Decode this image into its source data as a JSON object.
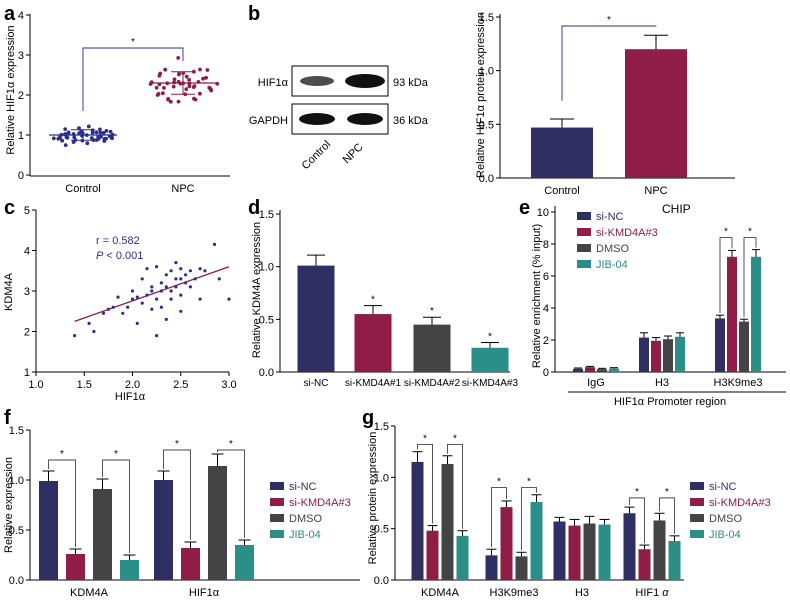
{
  "colors": {
    "navy": "#2f2f63",
    "crimson": "#8f1d45",
    "gray": "#444444",
    "teal": "#2a8f86",
    "dotNavy": "#2b2f8c",
    "dotCrimson": "#8f1d45",
    "fitLine": "#8f1d45",
    "blot": "#111111",
    "annotNavy": "#2b2f8c"
  },
  "chart_data": [
    {
      "id": "a",
      "letter": "a",
      "type": "scatter",
      "ylabel": "Relative HIF1α expression",
      "categories": [
        "Control",
        "NPC"
      ],
      "yticks": [
        "0",
        "1",
        "2",
        "3",
        "4"
      ],
      "ylim": [
        0,
        4
      ],
      "series": [
        {
          "name": "Control",
          "mean": 1.0,
          "sd": 0.13
        },
        {
          "name": "NPC",
          "mean": 2.3,
          "sd": 0.28
        }
      ],
      "sig": "*"
    },
    {
      "id": "b_blot",
      "letter": "b",
      "type": "blot",
      "bands": [
        {
          "name": "HIF1α",
          "kda": "93 kDa"
        },
        {
          "name": "GAPDH",
          "kda": "36 kDa"
        }
      ],
      "lanes": [
        "Control",
        "NPC"
      ]
    },
    {
      "id": "b_bar",
      "type": "bar",
      "ylabel": "Relative HIF1α protein expression",
      "categories": [
        "Control",
        "NPC"
      ],
      "values": [
        0.47,
        1.2
      ],
      "errors": [
        0.08,
        0.13
      ],
      "yticks": [
        "0.0",
        "0.5",
        "1.0",
        "1.5"
      ],
      "ylim": [
        0,
        1.5
      ],
      "sig": "*"
    },
    {
      "id": "c",
      "letter": "c",
      "type": "scatter",
      "xlabel": "HIF1α",
      "ylabel": "KDM4A",
      "xticks": [
        "1.0",
        "1.5",
        "2.0",
        "2.5",
        "3.0"
      ],
      "xlim": [
        1,
        3
      ],
      "yticks": [
        "1",
        "2",
        "3",
        "4",
        "5"
      ],
      "ylim": [
        1,
        5
      ],
      "r_text": "r = 0.582",
      "p_label": "P",
      "p_text": " < 0.001",
      "fit": {
        "x0": 1.4,
        "y0": 2.25,
        "x1": 3.0,
        "y1": 3.6
      },
      "points": [
        [
          1.4,
          1.9
        ],
        [
          1.55,
          2.2
        ],
        [
          1.6,
          2.0
        ],
        [
          1.7,
          2.45
        ],
        [
          1.75,
          2.55
        ],
        [
          1.8,
          2.6
        ],
        [
          1.85,
          2.85
        ],
        [
          1.9,
          2.45
        ],
        [
          1.95,
          2.6
        ],
        [
          2.0,
          3.0
        ],
        [
          2.0,
          2.8
        ],
        [
          2.05,
          2.85
        ],
        [
          2.05,
          2.2
        ],
        [
          2.1,
          3.3
        ],
        [
          2.1,
          2.7
        ],
        [
          2.15,
          2.9
        ],
        [
          2.15,
          3.55
        ],
        [
          2.2,
          3.1
        ],
        [
          2.2,
          2.55
        ],
        [
          2.2,
          3.0
        ],
        [
          2.25,
          3.6
        ],
        [
          2.25,
          2.8
        ],
        [
          2.25,
          1.9
        ],
        [
          2.3,
          3.2
        ],
        [
          2.3,
          3.0
        ],
        [
          2.3,
          2.6
        ],
        [
          2.35,
          3.4
        ],
        [
          2.35,
          3.1
        ],
        [
          2.35,
          2.3
        ],
        [
          2.4,
          3.5
        ],
        [
          2.4,
          3.0
        ],
        [
          2.4,
          2.8
        ],
        [
          2.45,
          3.3
        ],
        [
          2.45,
          3.7
        ],
        [
          2.45,
          3.1
        ],
        [
          2.5,
          3.55
        ],
        [
          2.5,
          3.3
        ],
        [
          2.5,
          2.9
        ],
        [
          2.5,
          2.5
        ],
        [
          2.55,
          3.2
        ],
        [
          2.55,
          3.4
        ],
        [
          2.6,
          3.5
        ],
        [
          2.6,
          3.1
        ],
        [
          2.65,
          3.3
        ],
        [
          2.7,
          3.55
        ],
        [
          2.7,
          2.8
        ],
        [
          2.75,
          3.5
        ],
        [
          2.85,
          4.15
        ],
        [
          2.9,
          3.3
        ],
        [
          3.0,
          2.8
        ]
      ]
    },
    {
      "id": "d",
      "letter": "d",
      "type": "bar",
      "ylabel": "Relative KDM4A expression",
      "categories": [
        "si-NC",
        "si-KMD4A#1",
        "si-KMD4A#2",
        "si-KMD4A#3"
      ],
      "values": [
        1.01,
        0.55,
        0.45,
        0.23
      ],
      "errors": [
        0.1,
        0.08,
        0.07,
        0.05
      ],
      "sig": [
        "",
        "*",
        "*",
        "*"
      ],
      "yticks": [
        "0.0",
        "0.5",
        "1.0",
        "1.5"
      ],
      "ylim": [
        0,
        1.5
      ]
    },
    {
      "id": "e",
      "letter": "e",
      "type": "bar",
      "title": "CHIP",
      "ylabel": "Relative enrichment (% input)",
      "xlabel": "HIF1α Promoter region",
      "groups": [
        "IgG",
        "H3",
        "H3K9me3"
      ],
      "series": [
        {
          "name": "si-NC",
          "values": [
            0.2,
            2.15,
            3.35
          ],
          "errors": [
            0.05,
            0.3,
            0.2
          ]
        },
        {
          "name": "si-KMD4A#3",
          "values": [
            0.3,
            1.95,
            7.2
          ],
          "errors": [
            0.05,
            0.2,
            0.4
          ]
        },
        {
          "name": "DMSO",
          "values": [
            0.18,
            2.05,
            3.15
          ],
          "errors": [
            0.05,
            0.2,
            0.15
          ]
        },
        {
          "name": "JIB-04",
          "values": [
            0.22,
            2.2,
            7.2
          ],
          "errors": [
            0.05,
            0.25,
            0.45
          ]
        }
      ],
      "yticks": [
        "0",
        "2",
        "4",
        "6",
        "8",
        "10"
      ],
      "ylim": [
        0,
        10
      ],
      "sig": "*"
    },
    {
      "id": "f",
      "letter": "f",
      "type": "bar",
      "ylabel": "Relative expression",
      "groups": [
        "KDM4A",
        "HIF1α"
      ],
      "series": [
        {
          "name": "si-NC",
          "values": [
            0.99,
            1.0
          ],
          "errors": [
            0.1,
            0.09
          ]
        },
        {
          "name": "si-KMD4A#3",
          "values": [
            0.26,
            0.32
          ],
          "errors": [
            0.05,
            0.06
          ]
        },
        {
          "name": "DMSO",
          "values": [
            0.91,
            1.14
          ],
          "errors": [
            0.1,
            0.12
          ]
        },
        {
          "name": "JIB-04",
          "values": [
            0.2,
            0.35
          ],
          "errors": [
            0.05,
            0.05
          ]
        }
      ],
      "yticks": [
        "0.0",
        "0.5",
        "1.0",
        "1.5"
      ],
      "ylim": [
        0,
        1.5
      ],
      "sig": "*"
    },
    {
      "id": "g",
      "letter": "g",
      "type": "bar",
      "ylabel": "Relative protein expression",
      "groups": [
        "KDM4A",
        "H3K9me3",
        "H3",
        "HIF1"
      ],
      "alpha": "α",
      "series": [
        {
          "name": "si-NC",
          "values": [
            1.15,
            0.24,
            0.57,
            0.65
          ],
          "errors": [
            0.1,
            0.06,
            0.04,
            0.06
          ]
        },
        {
          "name": "si-KMD4A#3",
          "values": [
            0.48,
            0.71,
            0.53,
            0.3
          ],
          "errors": [
            0.05,
            0.06,
            0.06,
            0.04
          ]
        },
        {
          "name": "DMSO",
          "values": [
            1.13,
            0.23,
            0.55,
            0.58
          ],
          "errors": [
            0.08,
            0.04,
            0.07,
            0.07
          ]
        },
        {
          "name": "JIB-04",
          "values": [
            0.43,
            0.76,
            0.54,
            0.38
          ],
          "errors": [
            0.05,
            0.07,
            0.05,
            0.05
          ]
        }
      ],
      "yticks": [
        "0.0",
        "0.5",
        "1.0",
        "1.5"
      ],
      "ylim": [
        0,
        1.5
      ],
      "sig": "*"
    }
  ]
}
